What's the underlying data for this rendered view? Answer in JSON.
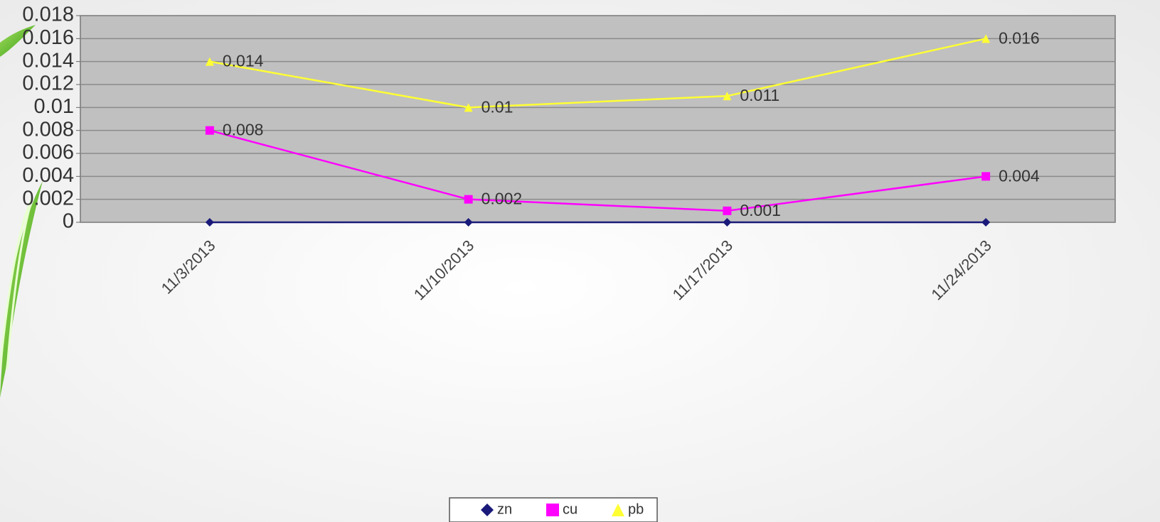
{
  "chart_data": {
    "type": "line",
    "categories": [
      "11/3/2013",
      "11/10/2013",
      "11/17/2013",
      "11/24/2013"
    ],
    "series": [
      {
        "name": "zn",
        "color": "#1a1a7a",
        "marker": "diamond",
        "show_values": false,
        "values": [
          0,
          0,
          0,
          0
        ]
      },
      {
        "name": "cu",
        "color": "#ff00ff",
        "marker": "square",
        "show_values": true,
        "values": [
          0.008,
          0.002,
          0.001,
          0.004
        ]
      },
      {
        "name": "pb",
        "color": "#ffff33",
        "marker": "triangle",
        "show_values": true,
        "values": [
          0.014,
          0.01,
          0.011,
          0.016
        ]
      }
    ],
    "ylim": [
      0,
      0.018
    ],
    "yticks": [
      0,
      0.002,
      0.004,
      0.006,
      0.008,
      0.01,
      0.012,
      0.014,
      0.016,
      0.018
    ],
    "grid": true,
    "legend": "bottom"
  }
}
